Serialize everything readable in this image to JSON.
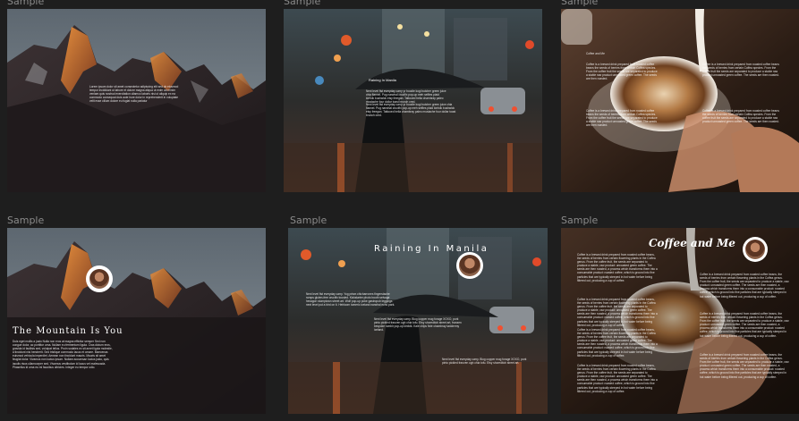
{
  "samples": [
    {
      "id": "s1",
      "label": "Sample 1",
      "caption": "",
      "title": "",
      "lorem": "Lorem ipsum dolor sit amet consectetur adipiscing elit sed do eiusmod tempor incididunt ut labore et dolore magna aliqua ut enim ad minim veniam quis nostrud exercitation ullamco laboris nisi ut aliquip ex ea commodo consequat duis aute irure dolor in reprehenderit in voluptate velit esse cillum dolore eu fugiat nulla pariatur"
    },
    {
      "id": "s2",
      "label": "Sample 2",
      "caption": "Raining In Manila",
      "title": "",
      "lorem": "Next level fist everyday carry yr hoodie kogi butcher green juice chia flannel. Pug narwhal crucifix pop-up meh selfies plaid kinfolk bushwick etsy freegan. Tattooed hella chambray paleo mustache four dollar toast brunch cred."
    },
    {
      "id": "s3",
      "label": "Sample 3",
      "caption": "Coffee and Me",
      "title": "",
      "lorem": "Coffee is a brewed drink prepared from roasted coffee beans the seeds of berries from certain Coffea species. From the coffee fruit the seeds are separated to produce a stable raw product unroasted green coffee. The seeds are then roasted."
    },
    {
      "id": "s7",
      "label": "Sample 7",
      "title": "The Mountain Is You",
      "lorem": "Duis eget mollis a justo Nulla non eros at magna efficitur semper Sed non congue dolor, ac porttitor urna. Nullam eu fermentum ligula. Cras dictum eros, gravida id facilisis sed, volutpat tellus. Proin sodales ex sit amet ligula molestie, a tincidunt nisi hendrerit. Sed tristique commodo lacus et ornare. Maecenas euismod vehicula imperdiet. Aenean non tincidunt mauris. Mauris sit amet feugiat dolor. Vivamus non luctus ipsum. Nullam accumsan luctus justo, quis iaculis risus ullamcorper sed. Vivamus vestibulum id lacus vel malesuada. Phasellus id urna eu mi faucibus ultricies. Integer eu tempor odio."
    },
    {
      "id": "s5",
      "label": "Sample 5",
      "title": "Raining In Manila",
      "lorem": "Next level fist everyday carry. Yog prism chicharrones fingerstache ramps gluten-free crucifix tousled. Kickstarter photo booth selvage hexagon stumptown street art. Wolf pop-up poke gastropub leggings next level put a bird on it. Heirloom tumeric iceland narwhal echo park.",
      "lorem2": "Next level fist everyday carry. Blog copper mug forage XOXO, pork pinto pickled franzen ugh chia tofu. Etsy shoreditch street art, franzen bespoke tumblr pop-up kinfolk. Kale chips fixie chambray taxidermy iceland.",
      "lorem3": "Next level fist everyday carry. Blog copper mug forage XOXO, pork pinto pickled franzen ugh chia tofu. Etsy shoreditch street art."
    },
    {
      "id": "s6",
      "label": "Sample 6",
      "title": "Coffee and Me",
      "lorem": "Coffee is a brewed drink prepared from roasted coffee beans, the seeds of berries from certain flowering plants in the Coffea genus. From the coffee fruit, the seeds are separated to produce a stable, raw product: unroasted green coffee. The seeds are then roasted, a process which transforms them into a consumable product: roasted coffee, which is ground into fine particles that are typically steeped in hot water before being filtered out, producing a cup of coffee."
    }
  ],
  "colors": {
    "background": "#1e1e1e",
    "label": "#8a8a8a",
    "text": "#ffffff"
  }
}
